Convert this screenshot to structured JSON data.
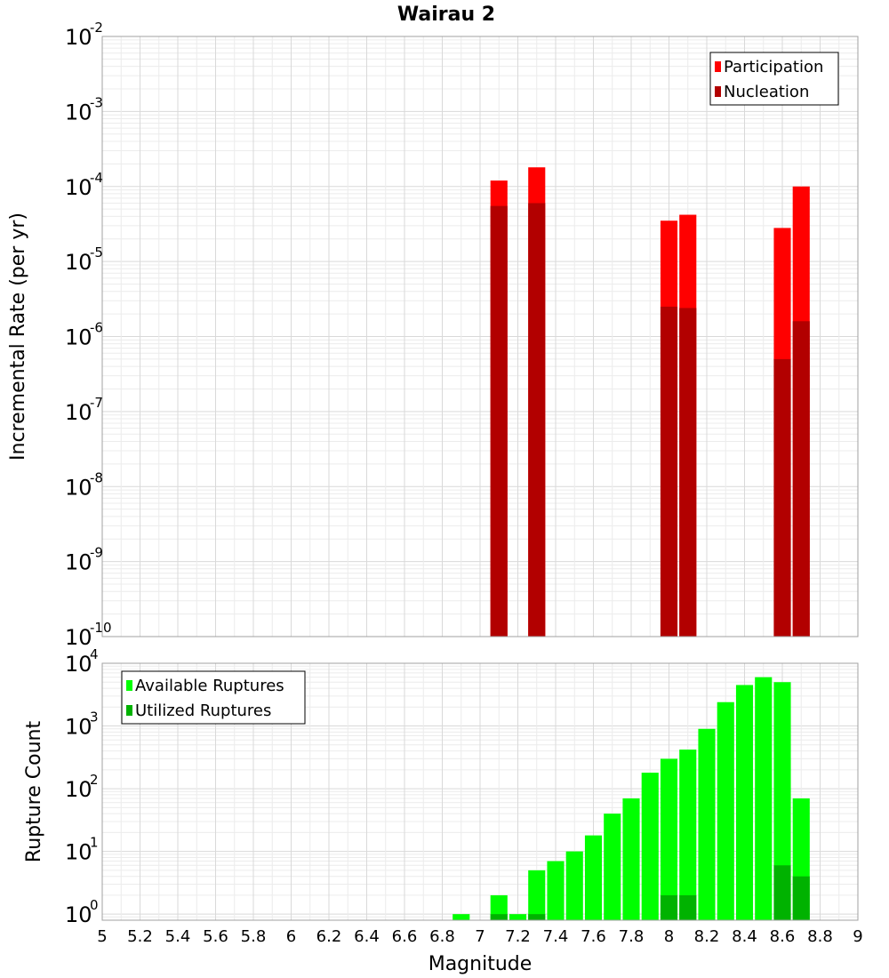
{
  "chart_data": [
    {
      "type": "bar",
      "title": "Wairau 2",
      "xlabel": "",
      "ylabel": "Incremental Rate (per yr)",
      "y_scale": "log",
      "ylim": [
        1e-10,
        0.01
      ],
      "xlim": [
        5,
        9
      ],
      "grid": true,
      "legend_position": "top-right",
      "x": [
        7.1,
        7.3,
        8.0,
        8.1,
        8.6,
        8.7
      ],
      "series": [
        {
          "name": "Participation",
          "color": "#ff0000",
          "values": [
            0.00012,
            0.00018,
            3.5e-05,
            4.2e-05,
            2.8e-05,
            0.0001
          ]
        },
        {
          "name": "Nucleation",
          "color": "#b20000",
          "values": [
            5.5e-05,
            6e-05,
            2.5e-06,
            2.4e-06,
            5e-07,
            1.6e-06
          ]
        }
      ],
      "yticks": [
        {
          "base": "10",
          "exp": "-2"
        },
        {
          "base": "10",
          "exp": "-3"
        },
        {
          "base": "10",
          "exp": "-4"
        },
        {
          "base": "10",
          "exp": "-5"
        },
        {
          "base": "10",
          "exp": "-6"
        },
        {
          "base": "10",
          "exp": "-7"
        },
        {
          "base": "10",
          "exp": "-8"
        },
        {
          "base": "10",
          "exp": "-9"
        },
        {
          "base": "10",
          "exp": "-10"
        }
      ]
    },
    {
      "type": "bar",
      "title": "",
      "xlabel": "Magnitude",
      "ylabel": "Rupture Count",
      "y_scale": "log",
      "ylim": [
        0.8,
        10000
      ],
      "xlim": [
        5,
        9
      ],
      "grid": true,
      "legend_position": "top-left",
      "x": [
        6.9,
        7.1,
        7.2,
        7.3,
        7.4,
        7.5,
        7.6,
        7.7,
        7.8,
        7.9,
        8.0,
        8.1,
        8.2,
        8.3,
        8.4,
        8.5,
        8.6,
        8.7
      ],
      "series": [
        {
          "name": "Available Ruptures",
          "color": "#00ff00",
          "values": [
            1,
            2,
            1,
            5,
            7,
            10,
            18,
            40,
            70,
            180,
            300,
            420,
            900,
            2400,
            4500,
            6000,
            5000,
            70
          ]
        },
        {
          "name": "Utilized Ruptures",
          "color": "#00b200",
          "values": [
            0,
            1,
            0,
            1,
            0,
            0,
            0,
            0,
            0,
            0,
            2,
            2,
            0,
            0,
            0,
            0,
            6,
            4
          ]
        }
      ],
      "yticks": [
        {
          "base": "10",
          "exp": "4"
        },
        {
          "base": "10",
          "exp": "3"
        },
        {
          "base": "10",
          "exp": "2"
        },
        {
          "base": "10",
          "exp": "1"
        },
        {
          "base": "10",
          "exp": "0"
        }
      ],
      "xticks": [
        "5",
        "5.2",
        "5.4",
        "5.6",
        "5.8",
        "6",
        "6.2",
        "6.4",
        "6.6",
        "6.8",
        "7",
        "7.2",
        "7.4",
        "7.6",
        "7.8",
        "8",
        "8.2",
        "8.4",
        "8.6",
        "8.8",
        "9"
      ]
    }
  ]
}
